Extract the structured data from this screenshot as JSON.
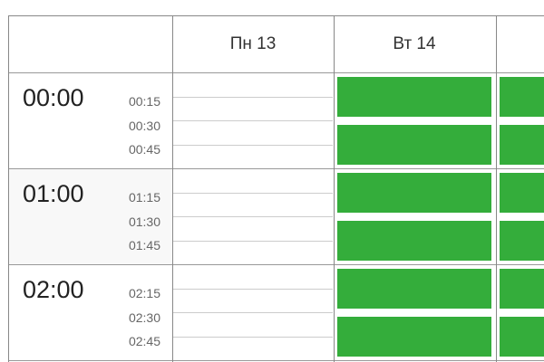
{
  "header": {
    "columns": [
      "",
      "Пн 13",
      "Вт 14",
      ""
    ]
  },
  "hours": [
    {
      "label": "00:00",
      "quarters": [
        "00:15",
        "00:30",
        "00:45"
      ]
    },
    {
      "label": "01:00",
      "quarters": [
        "01:15",
        "01:30",
        "01:45"
      ]
    },
    {
      "label": "02:00",
      "quarters": [
        "02:15",
        "02:30",
        "02:45"
      ]
    }
  ],
  "colors": {
    "booked": "#34ad3b",
    "border": "#888888"
  },
  "days": [
    {
      "name": "Пн 13",
      "slots_booked": [
        false,
        false,
        false,
        false,
        false,
        false
      ]
    },
    {
      "name": "Вт 14",
      "slots_booked": [
        true,
        true,
        true,
        true,
        true,
        true
      ]
    },
    {
      "name": "",
      "slots_booked": [
        true,
        true,
        true,
        true,
        true,
        true
      ]
    }
  ]
}
